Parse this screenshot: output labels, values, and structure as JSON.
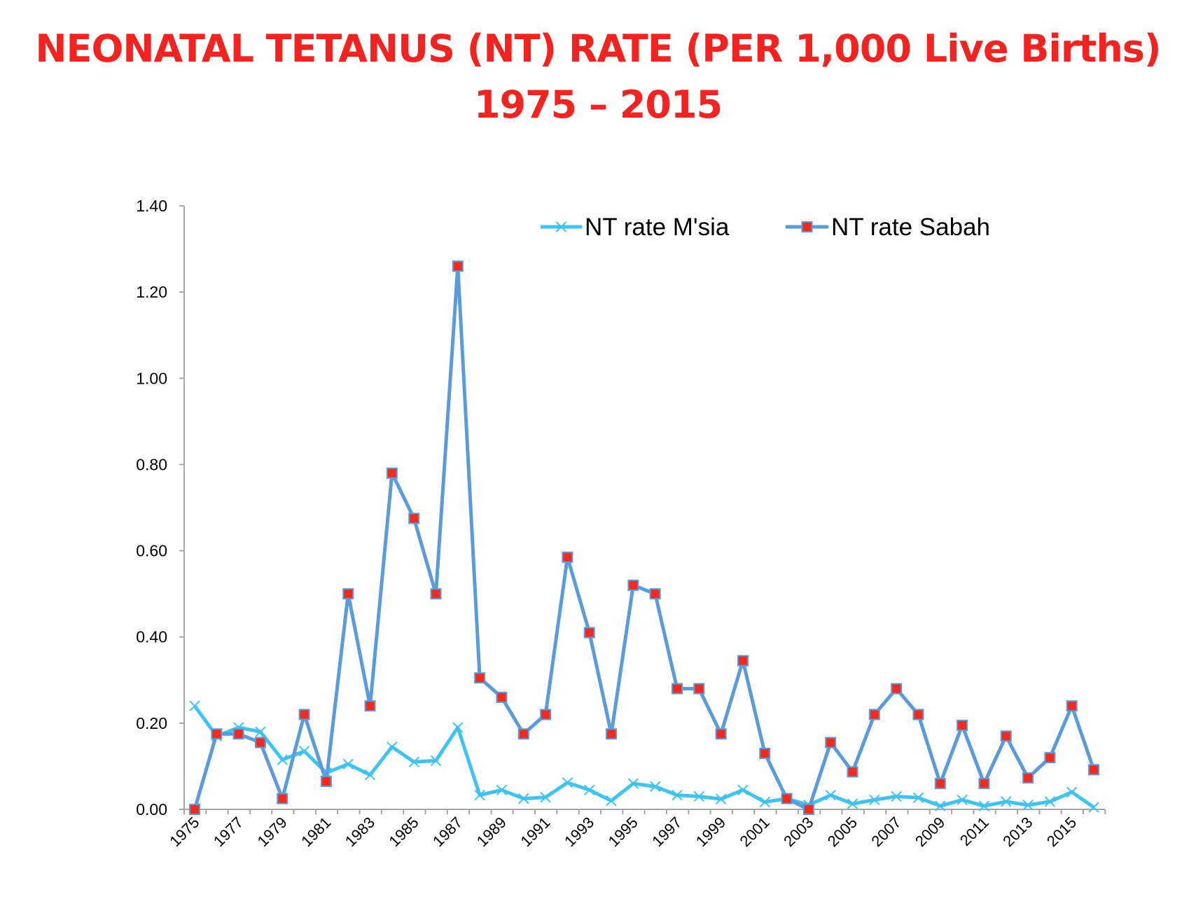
{
  "chart_data": {
    "type": "line",
    "title": "NEONATAL TETANUS (NT) RATE  (PER 1,000 Live Births)",
    "subtitle": "1975 – 2015",
    "xlabel": "",
    "ylabel": "",
    "ylim": [
      0,
      1.4
    ],
    "yticks": [
      "0.00",
      "0.20",
      "0.40",
      "0.60",
      "0.80",
      "1.00",
      "1.20",
      "1.40"
    ],
    "x": [
      1975,
      1976,
      1977,
      1978,
      1979,
      1980,
      1981,
      1982,
      1983,
      1984,
      1985,
      1986,
      1987,
      1988,
      1989,
      1990,
      1991,
      1992,
      1993,
      1994,
      1995,
      1996,
      1997,
      1998,
      1999,
      2000,
      2001,
      2002,
      2003,
      2004,
      2005,
      2006,
      2007,
      2008,
      2009,
      2010,
      2011,
      2012,
      2013,
      2014,
      2015,
      2016
    ],
    "xtick_labels": [
      "1975",
      "1977",
      "1979",
      "1981",
      "1983",
      "1985",
      "1987",
      "1989",
      "1991",
      "1993",
      "1995",
      "1997",
      "1999",
      "2001",
      "2003",
      "2005",
      "2007",
      "2009",
      "2011",
      "2013",
      "2015"
    ],
    "grid": false,
    "legend": "top-right",
    "series": [
      {
        "name": "NT rate M'sia",
        "color": "#3ec3f5",
        "marker": "x",
        "values": [
          0.24,
          0.17,
          0.19,
          0.18,
          0.115,
          0.135,
          0.085,
          0.105,
          0.08,
          0.145,
          0.11,
          0.113,
          0.19,
          0.033,
          0.045,
          0.025,
          0.028,
          0.062,
          0.045,
          0.02,
          0.06,
          0.053,
          0.033,
          0.03,
          0.024,
          0.045,
          0.017,
          0.025,
          0.01,
          0.033,
          0.013,
          0.022,
          0.03,
          0.027,
          0.008,
          0.022,
          0.008,
          0.018,
          0.01,
          0.018,
          0.04,
          0.005
        ]
      },
      {
        "name": "NT rate Sabah",
        "color": "#5a9bdc",
        "marker": "square",
        "marker_color": "#f52a1e",
        "values": [
          0,
          0.175,
          0.175,
          0.155,
          0.025,
          0.22,
          0.065,
          0.5,
          0.24,
          0.78,
          0.675,
          0.5,
          1.26,
          0.305,
          0.26,
          0.175,
          0.22,
          0.585,
          0.41,
          0.175,
          0.52,
          0.5,
          0.28,
          0.28,
          0.175,
          0.345,
          0.13,
          0.025,
          0,
          0.155,
          0.087,
          0.22,
          0.28,
          0.22,
          0.06,
          0.195,
          0.06,
          0.17,
          0.073,
          0.12,
          0.24,
          0.092
        ]
      }
    ]
  }
}
